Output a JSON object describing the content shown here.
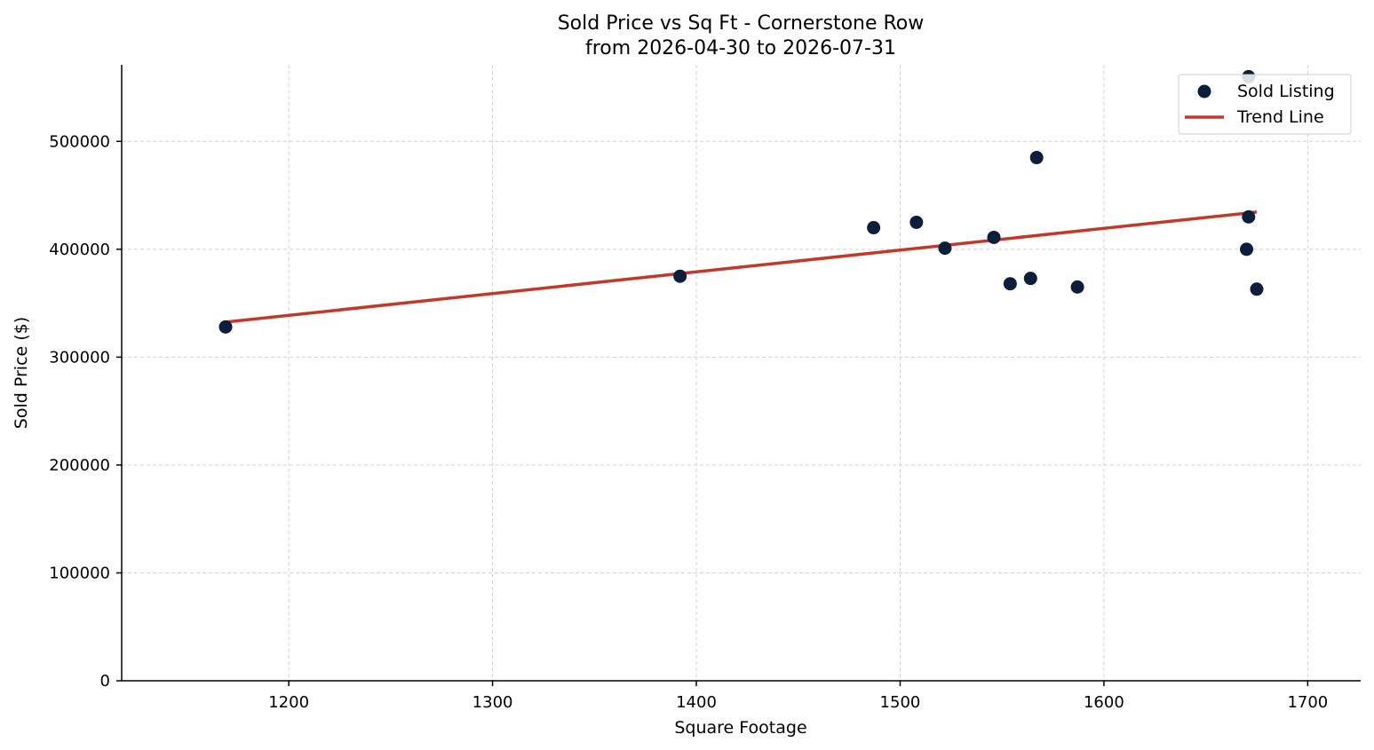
{
  "chart_data": {
    "type": "scatter",
    "title": "Sold Price vs Sq Ft - Cornerstone Row",
    "subtitle": "from 2026-04-30 to 2026-07-31",
    "xlabel": "Square Footage",
    "ylabel": "Sold Price ($)",
    "xlim": [
      1118,
      1726
    ],
    "ylim": [
      0,
      571000
    ],
    "xticks": [
      1200,
      1300,
      1400,
      1500,
      1600,
      1700
    ],
    "yticks": [
      0,
      100000,
      200000,
      300000,
      400000,
      500000
    ],
    "grid": true,
    "legend_position": "top-right",
    "series": [
      {
        "name": "Sold Listing",
        "kind": "scatter",
        "color": "#0b1f3a",
        "points": [
          {
            "x": 1169,
            "y": 328000
          },
          {
            "x": 1392,
            "y": 375000
          },
          {
            "x": 1487,
            "y": 420000
          },
          {
            "x": 1508,
            "y": 425000
          },
          {
            "x": 1522,
            "y": 401000
          },
          {
            "x": 1546,
            "y": 411000
          },
          {
            "x": 1554,
            "y": 368000
          },
          {
            "x": 1564,
            "y": 373000
          },
          {
            "x": 1567,
            "y": 485000
          },
          {
            "x": 1587,
            "y": 365000
          },
          {
            "x": 1670,
            "y": 400000
          },
          {
            "x": 1671,
            "y": 430000
          },
          {
            "x": 1671,
            "y": 560000
          },
          {
            "x": 1675,
            "y": 363000
          }
        ]
      },
      {
        "name": "Trend Line",
        "kind": "line",
        "color": "#c0392b",
        "points": [
          {
            "x": 1169,
            "y": 332500
          },
          {
            "x": 1675,
            "y": 434500
          }
        ]
      }
    ]
  }
}
